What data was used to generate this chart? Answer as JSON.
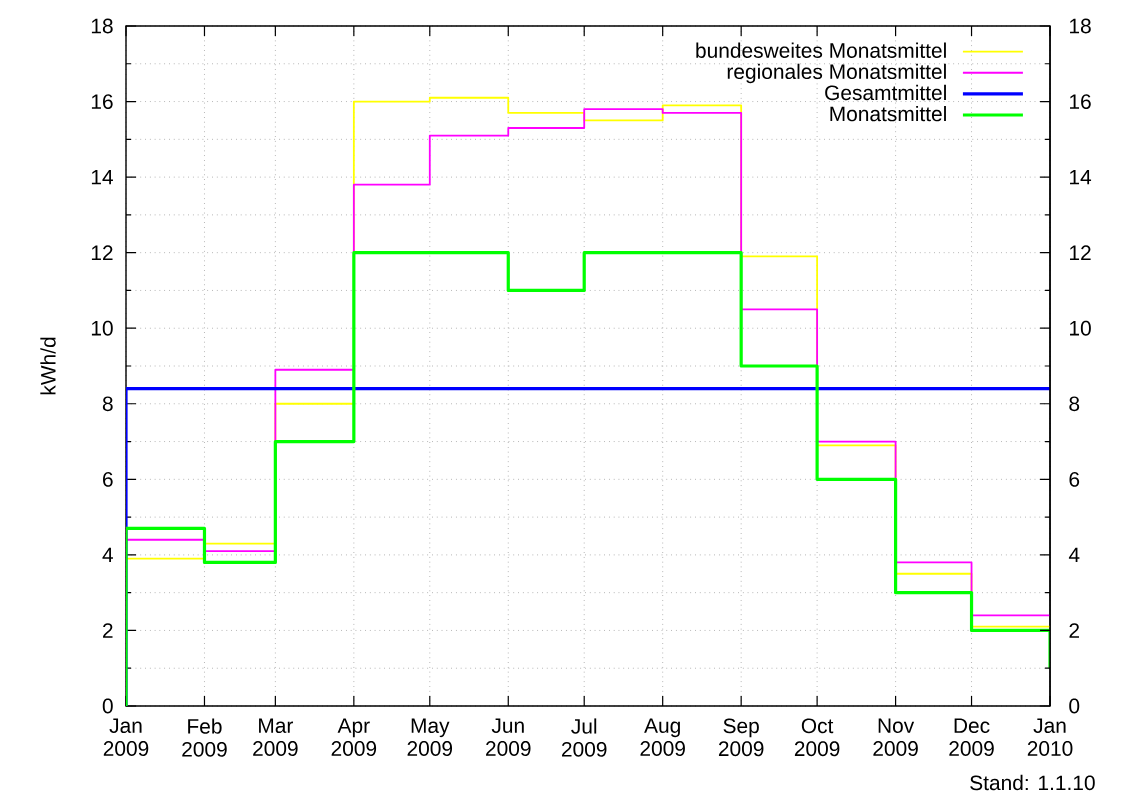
{
  "chart_data": {
    "type": "step",
    "ylabel": "kWh/d",
    "annotations": [
      "Stand: 1.1.10"
    ],
    "xlim": [
      "2009-01",
      "2010-01"
    ],
    "xticks": [
      {
        "value": "2009-01",
        "label": "Jan 2009"
      },
      {
        "value": "2009-02",
        "label": "Feb 2009"
      },
      {
        "value": "2009-03",
        "label": "Mar 2009"
      },
      {
        "value": "2009-04",
        "label": "Apr 2009"
      },
      {
        "value": "2009-05",
        "label": "May 2009"
      },
      {
        "value": "2009-06",
        "label": "Jun 2009"
      },
      {
        "value": "2009-07",
        "label": "Jul 2009"
      },
      {
        "value": "2009-08",
        "label": "Aug 2009"
      },
      {
        "value": "2009-09",
        "label": "Sep 2009"
      },
      {
        "value": "2009-10",
        "label": "Oct 2009"
      },
      {
        "value": "2009-11",
        "label": "Nov 2009"
      },
      {
        "value": "2009-12",
        "label": "Dec 2009"
      },
      {
        "value": "2010-01",
        "label": "Jan 2010"
      }
    ],
    "ylim": [
      0,
      18
    ],
    "yticks": [
      0,
      {
        "value": 1,
        "label": null
      },
      2,
      {
        "value": 3,
        "label": null
      },
      4,
      {
        "value": 5,
        "label": null
      },
      6,
      {
        "value": 7,
        "label": null
      },
      8,
      {
        "value": 9,
        "label": null
      },
      10,
      {
        "value": 11,
        "label": null
      },
      12,
      {
        "value": 13,
        "label": null
      },
      14,
      {
        "value": 15,
        "label": null
      },
      16,
      {
        "value": 17,
        "label": null
      },
      18
    ],
    "y2lim": [
      0,
      18
    ],
    "y2ticks": [
      0,
      {
        "value": 1,
        "label": null
      },
      2,
      {
        "value": 3,
        "label": null
      },
      4,
      {
        "value": 5,
        "label": null
      },
      6,
      {
        "value": 7,
        "label": null
      },
      8,
      {
        "value": 9,
        "label": null
      },
      10,
      {
        "value": 11,
        "label": null
      },
      12,
      {
        "value": 13,
        "label": null
      },
      14,
      {
        "value": 15,
        "label": null
      },
      16,
      {
        "value": 17,
        "label": null
      },
      18
    ],
    "grid": true,
    "legend": "top right",
    "series": [
      {
        "name": "bundesweites Monatsmittel",
        "color": "#ffff00",
        "x": [
          "2009-01",
          "2009-02",
          "2009-03",
          "2009-04",
          "2009-05",
          "2009-06",
          "2009-07",
          "2009-08",
          "2009-09",
          "2009-10",
          "2009-11",
          "2009-12",
          "2010-01"
        ],
        "values": [
          3.9,
          4.3,
          8.0,
          16.0,
          16.1,
          15.7,
          15.5,
          15.9,
          11.9,
          6.9,
          3.5,
          2.1,
          2.1
        ]
      },
      {
        "name": "regionales Monatsmittel",
        "color": "#ff00ff",
        "x": [
          "2009-01",
          "2009-02",
          "2009-03",
          "2009-04",
          "2009-05",
          "2009-06",
          "2009-07",
          "2009-08",
          "2009-09",
          "2009-10",
          "2009-11",
          "2009-12",
          "2010-01"
        ],
        "values": [
          4.4,
          4.1,
          8.9,
          13.8,
          15.1,
          15.3,
          15.8,
          15.7,
          10.5,
          7.0,
          3.8,
          2.4,
          2.4
        ]
      },
      {
        "name": "Gesamtmittel",
        "color": "#0000ff",
        "x": [
          "2009-01",
          "2009-01",
          "2010-01"
        ],
        "values": [
          0,
          8.4,
          8.4
        ]
      },
      {
        "name": "Monatsmittel",
        "color": "#00ff00",
        "x": [
          "2009-01",
          "2009-01",
          "2009-02",
          "2009-03",
          "2009-04",
          "2009-05",
          "2009-06",
          "2009-07",
          "2009-08",
          "2009-09",
          "2009-10",
          "2009-11",
          "2009-12",
          "2010-01"
        ],
        "values": [
          0,
          4.7,
          3.8,
          7.0,
          12,
          12,
          11,
          12,
          12,
          9,
          6,
          3,
          2,
          1
        ]
      }
    ]
  }
}
